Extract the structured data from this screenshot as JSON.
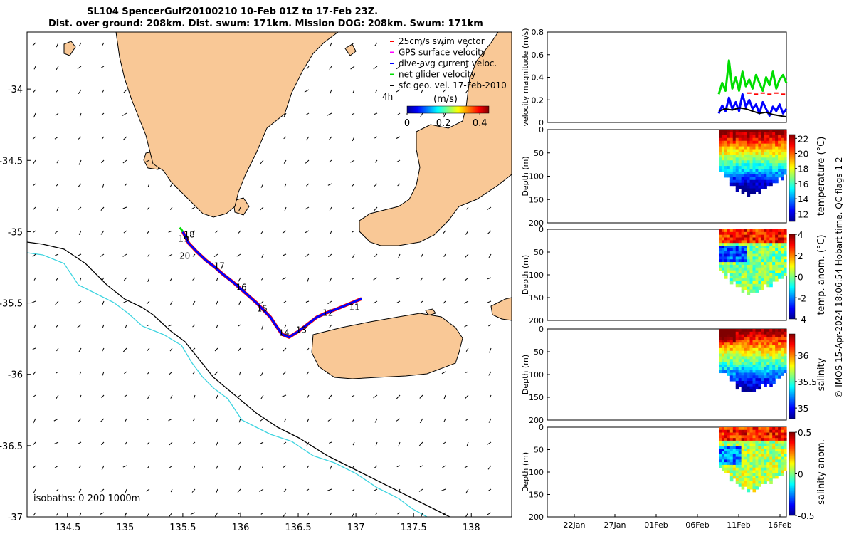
{
  "title": {
    "line1": "SL104 SpencerGulf20100210 10-Feb 01Z to 17-Feb 23Z.",
    "line2": "Dist. over ground: 208km. Dist. swum: 171km. Mission DOG: 208km. Swum: 171km"
  },
  "chart_data": [
    {
      "type": "map",
      "name": "track-map",
      "xlim": [
        134.15,
        138.35
      ],
      "ylim": [
        -37.0,
        -33.6
      ],
      "x_ticks": [
        134.5,
        135,
        135.5,
        136,
        136.5,
        137,
        137.5,
        138
      ],
      "x_tick_labels": [
        "134.5",
        "135",
        "135.5",
        "136",
        "136.5",
        "137",
        "137.5",
        "138"
      ],
      "y_ticks": [
        -34,
        -34.5,
        -35,
        -35.5,
        -36,
        -36.5,
        -37
      ],
      "y_tick_labels": [
        "-34",
        "-34.5",
        "-35",
        "-35.5",
        "-36",
        "-36.5",
        "-37"
      ],
      "legend": [
        {
          "label": "25cm/s swim vector",
          "color": "#ff0000"
        },
        {
          "label": "GPS surface velocity",
          "color": "#ff00ff"
        },
        {
          "label": "dive-avg current veloc.",
          "color": "#0000ff"
        },
        {
          "label": "net glider velocity",
          "color": "#00dd00"
        },
        {
          "label": "sfc geo. vel. 17-Feb-2010",
          "color": "#000000"
        }
      ],
      "scale_label": "4h",
      "colorbar": {
        "label": "(m/s)",
        "ticks": [
          "0",
          "0.2",
          "0.4"
        ],
        "range": [
          0,
          0.45
        ]
      },
      "isobaths_label": "isobaths: 0   200   1000m",
      "track": [
        [
          135.5,
          -35.0
        ],
        [
          135.55,
          -35.08
        ],
        [
          135.62,
          -35.14
        ],
        [
          135.7,
          -35.2
        ],
        [
          135.78,
          -35.25
        ],
        [
          135.85,
          -35.3
        ],
        [
          135.93,
          -35.35
        ],
        [
          136.0,
          -35.4
        ],
        [
          136.07,
          -35.45
        ],
        [
          136.14,
          -35.5
        ],
        [
          136.2,
          -35.55
        ],
        [
          136.26,
          -35.6
        ],
        [
          136.3,
          -35.65
        ],
        [
          136.36,
          -35.72
        ],
        [
          136.42,
          -35.74
        ],
        [
          136.5,
          -35.7
        ],
        [
          136.58,
          -35.65
        ],
        [
          136.66,
          -35.6
        ],
        [
          136.74,
          -35.57
        ],
        [
          136.84,
          -35.54
        ],
        [
          136.96,
          -35.5
        ],
        [
          137.05,
          -35.47
        ]
      ],
      "day_labels": [
        {
          "text": "18",
          "lon": 135.51,
          "lat": -35.04
        },
        {
          "text": "19",
          "lon": 135.46,
          "lat": -35.07
        },
        {
          "text": "20",
          "lon": 135.47,
          "lat": -35.19
        },
        {
          "text": "17",
          "lon": 135.77,
          "lat": -35.26
        },
        {
          "text": "16",
          "lon": 135.96,
          "lat": -35.41
        },
        {
          "text": "15",
          "lon": 136.14,
          "lat": -35.56
        },
        {
          "text": "14",
          "lon": 136.33,
          "lat": -35.73
        },
        {
          "text": "13",
          "lon": 136.48,
          "lat": -35.71
        },
        {
          "text": "12",
          "lon": 136.71,
          "lat": -35.59
        },
        {
          "text": "11",
          "lon": 136.94,
          "lat": -35.55
        }
      ]
    },
    {
      "type": "line",
      "name": "velocity-panel",
      "ylabel": "velocity magnitude (m/s)",
      "ylim": [
        0,
        0.8
      ],
      "y_ticks": [
        "0",
        "0.2",
        "0.4",
        "0.6",
        "0.8"
      ],
      "series": [
        {
          "name": "net glider velocity",
          "color": "#00dd00",
          "x": [
            0,
            0.05,
            0.1,
            0.15,
            0.2,
            0.25,
            0.3,
            0.35,
            0.4,
            0.45,
            0.5,
            0.55,
            0.6,
            0.65,
            0.7,
            0.75,
            0.8,
            0.85,
            0.9,
            0.95,
            1.0
          ],
          "values": [
            0.25,
            0.35,
            0.28,
            0.55,
            0.3,
            0.4,
            0.28,
            0.45,
            0.32,
            0.38,
            0.3,
            0.42,
            0.35,
            0.28,
            0.4,
            0.33,
            0.45,
            0.3,
            0.38,
            0.42,
            0.35
          ]
        },
        {
          "name": "dive-avg current veloc.",
          "color": "#0000ff",
          "x": [
            0,
            0.05,
            0.1,
            0.15,
            0.2,
            0.25,
            0.3,
            0.35,
            0.4,
            0.45,
            0.5,
            0.55,
            0.6,
            0.65,
            0.7,
            0.75,
            0.8,
            0.85,
            0.9,
            0.95,
            1.0
          ],
          "values": [
            0.08,
            0.15,
            0.1,
            0.22,
            0.12,
            0.18,
            0.1,
            0.25,
            0.14,
            0.2,
            0.12,
            0.16,
            0.08,
            0.18,
            0.12,
            0.06,
            0.14,
            0.1,
            0.16,
            0.08,
            0.12
          ]
        },
        {
          "name": "sfc geo. vel.",
          "color": "#000000",
          "x": [
            0,
            0.1,
            0.2,
            0.3,
            0.4,
            0.5,
            0.6,
            0.7,
            0.8,
            0.9,
            1.0
          ],
          "values": [
            0.1,
            0.12,
            0.11,
            0.13,
            0.12,
            0.1,
            0.08,
            0.09,
            0.07,
            0.06,
            0.05
          ]
        },
        {
          "name": "25cm/s swim vector",
          "color": "#ff0000",
          "x": [
            0.45,
            0.55,
            0.65,
            0.75,
            0.85,
            0.95
          ],
          "values": [
            0.26,
            0.25,
            0.26,
            0.25,
            0.26,
            0.25
          ]
        }
      ]
    },
    {
      "type": "heatmap",
      "name": "temperature-panel",
      "ylabel": "Depth (m)",
      "ylim": [
        0,
        200
      ],
      "y_ticks": [
        "0",
        "50",
        "100",
        "150",
        "200"
      ],
      "colorbar_label": "temperature (°C)",
      "colorbar_ticks": [
        "22",
        "20",
        "18",
        "16",
        "14",
        "12"
      ],
      "colorbar_range": [
        11,
        22.5
      ]
    },
    {
      "type": "heatmap",
      "name": "temp-anomaly-panel",
      "ylabel": "Depth (m)",
      "ylim": [
        0,
        200
      ],
      "y_ticks": [
        "0",
        "50",
        "100",
        "150",
        "200"
      ],
      "colorbar_label": "temp. anom. (°C)",
      "colorbar_ticks": [
        "4",
        "2",
        "0",
        "-2",
        "-4"
      ],
      "colorbar_range": [
        -4,
        4
      ]
    },
    {
      "type": "heatmap",
      "name": "salinity-panel",
      "ylabel": "Depth (m)",
      "ylim": [
        0,
        200
      ],
      "y_ticks": [
        "0",
        "50",
        "100",
        "150",
        "200"
      ],
      "colorbar_label": "salinity",
      "colorbar_ticks": [
        "36",
        "35.5",
        "35"
      ],
      "colorbar_range": [
        34.8,
        36.4
      ]
    },
    {
      "type": "heatmap",
      "name": "salinity-anomaly-panel",
      "ylabel": "Depth (m)",
      "ylim": [
        0,
        200
      ],
      "y_ticks": [
        "0",
        "50",
        "100",
        "150",
        "200"
      ],
      "colorbar_label": "salinity anom.",
      "colorbar_ticks": [
        "0.5",
        "0",
        "-0.5"
      ],
      "colorbar_range": [
        -0.5,
        0.5
      ],
      "x_tick_labels": [
        "22Jan",
        "27Jan",
        "01Feb",
        "06Feb",
        "11Feb",
        "16Feb"
      ]
    }
  ],
  "footer_note": "© IMOS 15-Apr-2024 18:06:54 Hobart time. QC flags 1  2",
  "colors": {
    "land": "#f9c896",
    "coast": "#000000",
    "isobath200": "#000000",
    "isobath1000": "#3ed4e0"
  }
}
